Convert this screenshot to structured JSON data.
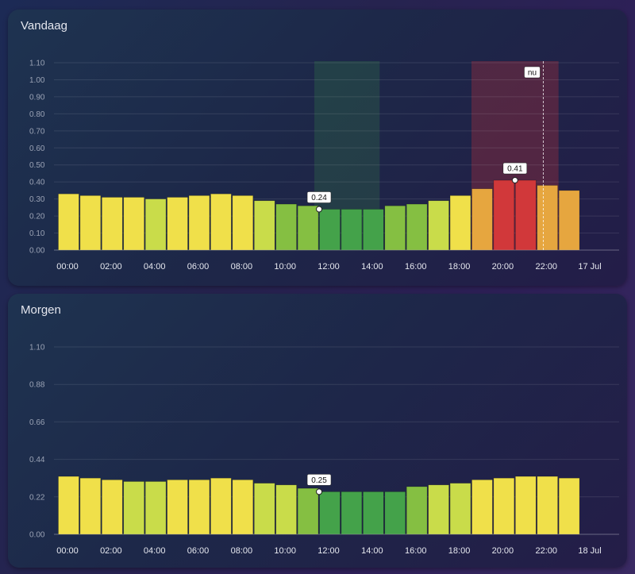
{
  "charts": [
    {
      "id": "vandaag",
      "title": "Vandaag",
      "now_label": "nu",
      "chart_data": {
        "type": "bar",
        "hours": [
          "00",
          "01",
          "02",
          "03",
          "04",
          "05",
          "06",
          "07",
          "08",
          "09",
          "10",
          "11",
          "12",
          "13",
          "14",
          "15",
          "16",
          "17",
          "18",
          "19",
          "20",
          "21",
          "22",
          "23"
        ],
        "values": [
          0.33,
          0.32,
          0.31,
          0.31,
          0.3,
          0.31,
          0.32,
          0.33,
          0.32,
          0.29,
          0.27,
          0.26,
          0.24,
          0.24,
          0.24,
          0.26,
          0.27,
          0.29,
          0.32,
          0.36,
          0.41,
          0.41,
          0.38,
          0.35
        ],
        "colors": [
          "#f0e04a",
          "#f0e04a",
          "#f0e04a",
          "#f0e04a",
          "#c9dc4a",
          "#f0e04a",
          "#f0e04a",
          "#f0e04a",
          "#f0e04a",
          "#c9dc4a",
          "#85bf42",
          "#85bf42",
          "#44a24a",
          "#44a24a",
          "#44a24a",
          "#85bf42",
          "#85bf42",
          "#c9dc4a",
          "#f0e04a",
          "#e6a63f",
          "#d1383a",
          "#d1383a",
          "#e6a63f",
          "#e6a63f"
        ],
        "x_tick_labels": [
          "00:00",
          "02:00",
          "04:00",
          "06:00",
          "08:00",
          "10:00",
          "12:00",
          "14:00",
          "16:00",
          "18:00",
          "20:00",
          "22:00",
          "17 Jul"
        ],
        "y_ticks": [
          "0.00",
          "0.10",
          "0.20",
          "0.30",
          "0.40",
          "0.50",
          "0.60",
          "0.70",
          "0.80",
          "0.90",
          "1.00",
          "1.10"
        ],
        "ylim": [
          0,
          1.1
        ],
        "min_annotation": {
          "hour": 11,
          "value": 0.24,
          "label": "0.24"
        },
        "max_annotation": {
          "hour": 20,
          "value": 0.41,
          "label": "0.41"
        },
        "green_band_hours": [
          12,
          15
        ],
        "red_band_hours": [
          19,
          23
        ],
        "now_hour": 22.3,
        "grid": true
      }
    },
    {
      "id": "morgen",
      "title": "Morgen",
      "chart_data": {
        "type": "bar",
        "hours": [
          "00",
          "01",
          "02",
          "03",
          "04",
          "05",
          "06",
          "07",
          "08",
          "09",
          "10",
          "11",
          "12",
          "13",
          "14",
          "15",
          "16",
          "17",
          "18",
          "19",
          "20",
          "21",
          "22",
          "23"
        ],
        "values": [
          0.34,
          0.33,
          0.32,
          0.31,
          0.31,
          0.32,
          0.32,
          0.33,
          0.32,
          0.3,
          0.29,
          0.27,
          0.25,
          0.25,
          0.25,
          0.25,
          0.28,
          0.29,
          0.3,
          0.32,
          0.33,
          0.34,
          0.34,
          0.33
        ],
        "colors": [
          "#f0e04a",
          "#f0e04a",
          "#f0e04a",
          "#c9dc4a",
          "#c9dc4a",
          "#f0e04a",
          "#f0e04a",
          "#f0e04a",
          "#f0e04a",
          "#c9dc4a",
          "#c9dc4a",
          "#85bf42",
          "#44a24a",
          "#44a24a",
          "#44a24a",
          "#44a24a",
          "#85bf42",
          "#c9dc4a",
          "#c9dc4a",
          "#f0e04a",
          "#f0e04a",
          "#f0e04a",
          "#f0e04a",
          "#f0e04a"
        ],
        "x_tick_labels": [
          "00:00",
          "02:00",
          "04:00",
          "06:00",
          "08:00",
          "10:00",
          "12:00",
          "14:00",
          "16:00",
          "18:00",
          "20:00",
          "22:00",
          "18 Jul"
        ],
        "y_ticks": [
          "0.00",
          "0.22",
          "0.44",
          "0.66",
          "0.88",
          "1.10"
        ],
        "ylim": [
          0,
          1.1
        ],
        "min_annotation": {
          "hour": 11,
          "value": 0.25,
          "label": "0.25"
        },
        "grid": true
      }
    }
  ]
}
